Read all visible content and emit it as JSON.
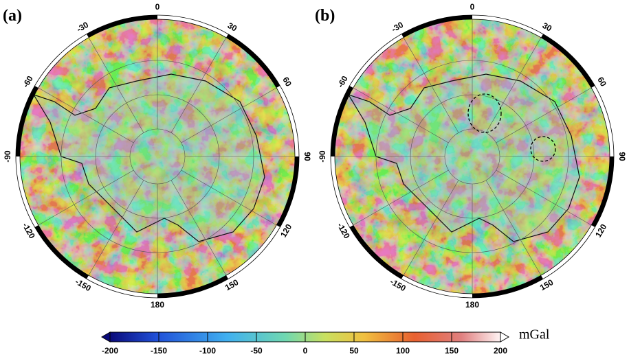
{
  "panels": [
    {
      "label": "(a)",
      "lon_labels": [
        0,
        30,
        60,
        90,
        120,
        150,
        180,
        -150,
        -120,
        -90,
        -60,
        -30
      ]
    },
    {
      "label": "(b)",
      "lon_labels": [
        0,
        30,
        60,
        90,
        120,
        150,
        180,
        -150,
        -120,
        -90,
        -60,
        -30
      ]
    }
  ],
  "colorbar": {
    "range": [
      -200,
      200
    ],
    "ticks": [
      -200,
      -150,
      -100,
      -50,
      0,
      50,
      100,
      150,
      200
    ],
    "unit": "mGal"
  }
}
